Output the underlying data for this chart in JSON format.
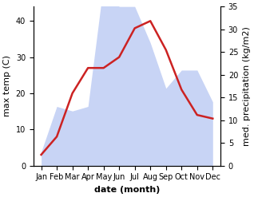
{
  "months": [
    "Jan",
    "Feb",
    "Mar",
    "Apr",
    "May",
    "Jun",
    "Jul",
    "Aug",
    "Sep",
    "Oct",
    "Nov",
    "Dec"
  ],
  "temp": [
    3,
    8,
    20,
    27,
    27,
    30,
    38,
    40,
    32,
    21,
    14,
    13
  ],
  "precip": [
    3,
    13,
    12,
    13,
    40,
    35,
    35,
    27,
    17,
    21,
    21,
    14
  ],
  "temp_color": "#cc2222",
  "precip_fill_color": "#c8d4f5",
  "xlabel": "date (month)",
  "ylabel_left": "max temp (C)",
  "ylabel_right": "med. precipitation (kg/m2)",
  "ylim_left": [
    0,
    44
  ],
  "ylim_right": [
    0,
    35
  ],
  "yticks_left": [
    0,
    10,
    20,
    30,
    40
  ],
  "yticks_right": [
    0,
    5,
    10,
    15,
    20,
    25,
    30,
    35
  ],
  "background_color": "#ffffff",
  "title_fontsize": 8,
  "axis_fontsize": 8,
  "tick_fontsize": 7
}
